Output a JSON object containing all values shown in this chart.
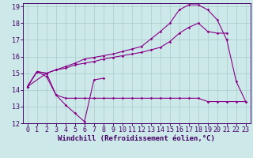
{
  "background_color": "#cce8e8",
  "grid_color": "#aacccc",
  "line_color": "#880088",
  "spine_color": "#440066",
  "xlim": [
    -0.5,
    23.5
  ],
  "ylim": [
    12,
    19.2
  ],
  "xlabel": "Windchill (Refroidissement éolien,°C)",
  "xlabel_fontsize": 6.5,
  "xticks": [
    0,
    1,
    2,
    3,
    4,
    5,
    6,
    7,
    8,
    9,
    10,
    11,
    12,
    13,
    14,
    15,
    16,
    17,
    18,
    19,
    20,
    21,
    22,
    23
  ],
  "yticks": [
    12,
    13,
    14,
    15,
    16,
    17,
    18,
    19
  ],
  "tick_fontsize": 6.0,
  "line1_x": [
    0,
    1,
    2,
    3,
    4,
    5,
    6,
    7,
    8
  ],
  "line1_y": [
    14.2,
    15.1,
    14.8,
    13.7,
    13.1,
    12.6,
    12.1,
    14.6,
    14.7
  ],
  "line2_x": [
    0,
    2,
    3,
    4,
    5,
    6,
    7,
    8,
    9,
    10,
    11,
    12,
    13,
    14,
    15,
    16,
    17,
    18,
    19,
    20,
    21,
    22,
    23
  ],
  "line2_y": [
    14.2,
    15.0,
    13.7,
    13.5,
    13.5,
    13.5,
    13.5,
    13.5,
    13.5,
    13.5,
    13.5,
    13.5,
    13.5,
    13.5,
    13.5,
    13.5,
    13.5,
    13.5,
    13.3,
    13.3,
    13.3,
    13.3,
    13.3
  ],
  "line3_x": [
    0,
    1,
    2,
    3,
    4,
    5,
    6,
    7,
    8,
    9,
    10,
    11,
    12,
    13,
    14,
    15,
    16,
    17,
    18,
    19,
    20,
    21
  ],
  "line3_y": [
    14.2,
    15.1,
    15.0,
    15.2,
    15.3,
    15.5,
    15.6,
    15.7,
    15.85,
    15.95,
    16.05,
    16.15,
    16.25,
    16.4,
    16.55,
    16.9,
    17.4,
    17.75,
    18.0,
    17.5,
    17.4,
    17.4
  ],
  "line4_x": [
    0,
    1,
    2,
    3,
    4,
    5,
    6,
    7,
    8,
    9,
    10,
    11,
    12,
    13,
    14,
    15,
    16,
    17,
    18,
    19,
    20,
    21,
    22,
    23
  ],
  "line4_y": [
    14.2,
    15.1,
    15.0,
    15.2,
    15.4,
    15.6,
    15.85,
    15.95,
    16.05,
    16.15,
    16.3,
    16.45,
    16.6,
    17.05,
    17.5,
    18.0,
    18.8,
    19.1,
    19.1,
    18.8,
    18.2,
    17.0,
    14.5,
    13.3
  ]
}
